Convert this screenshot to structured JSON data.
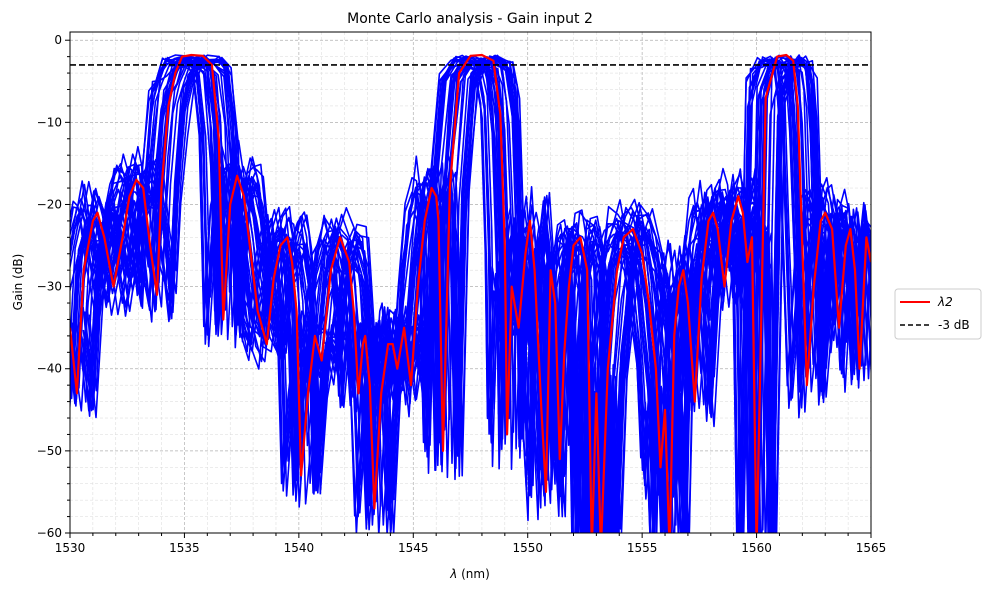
{
  "chart_data": {
    "type": "line",
    "title": "Monte Carlo analysis - Gain input 2",
    "xlabel_symbol": "λ",
    "xlabel_unit": " (nm)",
    "ylabel": "Gain (dB)",
    "xlim": [
      1530,
      1565
    ],
    "ylim": [
      -60,
      1
    ],
    "xticks": [
      1530,
      1535,
      1540,
      1545,
      1550,
      1555,
      1560,
      1565
    ],
    "yticks": [
      0,
      -10,
      -20,
      -30,
      -40,
      -50,
      -60
    ],
    "grid": true,
    "legend_position": "outside-right",
    "colors": {
      "nominal": "#ff0000",
      "monte_carlo": "#0000ff",
      "threshold": "#000000"
    },
    "monte_carlo_runs": 40,
    "series": [
      {
        "name": "λ2",
        "style": "solid",
        "color": "#ff0000",
        "x": [
          1530.0,
          1530.3,
          1530.6,
          1531.0,
          1531.2,
          1531.5,
          1531.9,
          1532.3,
          1532.6,
          1532.9,
          1533.2,
          1533.5,
          1533.8,
          1534.0,
          1534.3,
          1534.6,
          1534.9,
          1535.3,
          1535.8,
          1536.2,
          1536.5,
          1536.7,
          1537.0,
          1537.3,
          1537.6,
          1537.9,
          1538.2,
          1538.6,
          1538.9,
          1539.2,
          1539.5,
          1539.7,
          1539.9,
          1540.1,
          1540.4,
          1540.7,
          1541.0,
          1541.4,
          1541.8,
          1542.2,
          1542.4,
          1542.6,
          1542.8,
          1542.9,
          1543.1,
          1543.3,
          1543.6,
          1543.9,
          1544.1,
          1544.3,
          1544.6,
          1544.9,
          1545.2,
          1545.5,
          1545.8,
          1546.0,
          1546.1,
          1546.3,
          1546.6,
          1547.0,
          1547.5,
          1548.0,
          1548.5,
          1548.8,
          1549.0,
          1549.1,
          1549.3,
          1549.6,
          1549.9,
          1550.1,
          1550.3,
          1550.6,
          1550.8,
          1551.0,
          1551.2,
          1551.4,
          1551.6,
          1551.8,
          1552.0,
          1552.3,
          1552.6,
          1552.8,
          1553.0,
          1553.2,
          1553.5,
          1553.9,
          1554.2,
          1554.6,
          1555.0,
          1555.3,
          1555.6,
          1555.8,
          1556.0,
          1556.2,
          1556.4,
          1556.6,
          1556.8,
          1557.0,
          1557.3,
          1557.6,
          1557.9,
          1558.1,
          1558.3,
          1558.6,
          1558.9,
          1559.2,
          1559.4,
          1559.6,
          1559.8,
          1560.0,
          1560.4,
          1560.9,
          1561.3,
          1561.6,
          1561.8,
          1562.0,
          1562.2,
          1562.5,
          1562.8,
          1563.0,
          1563.3,
          1563.6,
          1563.9,
          1564.1,
          1564.3,
          1564.5,
          1564.8,
          1565.0
        ],
        "y": [
          -35,
          -43,
          -28,
          -22,
          -21,
          -24,
          -30,
          -24,
          -19,
          -17,
          -18,
          -25,
          -31,
          -18,
          -8,
          -4,
          -2,
          -1.8,
          -1.9,
          -3,
          -12,
          -34,
          -20,
          -16.5,
          -19,
          -26,
          -33,
          -37,
          -29,
          -25,
          -24,
          -27,
          -33,
          -53,
          -43,
          -36,
          -39,
          -28,
          -24,
          -27,
          -33,
          -43,
          -37,
          -36,
          -42,
          -57,
          -43,
          -37,
          -37,
          -40,
          -35,
          -42,
          -30,
          -22,
          -18,
          -19,
          -22,
          -50,
          -18,
          -4,
          -1.9,
          -1.8,
          -2.5,
          -9,
          -25,
          -48,
          -30,
          -35,
          -26,
          -22,
          -28,
          -45,
          -55,
          -28,
          -32,
          -51,
          -38,
          -30,
          -25,
          -24,
          -28,
          -62,
          -43,
          -62,
          -40,
          -28,
          -24,
          -23,
          -26,
          -32,
          -40,
          -52,
          -45,
          -62,
          -36,
          -30,
          -28,
          -32,
          -44,
          -29,
          -22,
          -21,
          -23,
          -30,
          -22,
          -19,
          -21,
          -27,
          -24,
          -62,
          -7,
          -2,
          -1.8,
          -2.5,
          -8,
          -25,
          -42,
          -30,
          -22,
          -21,
          -23,
          -35,
          -25,
          -23,
          -28,
          -40,
          -24,
          -27
        ]
      },
      {
        "name": "-3 dB",
        "style": "dashed",
        "color": "#000000",
        "x": [
          1530,
          1565
        ],
        "y": [
          -3,
          -3
        ]
      }
    ]
  }
}
